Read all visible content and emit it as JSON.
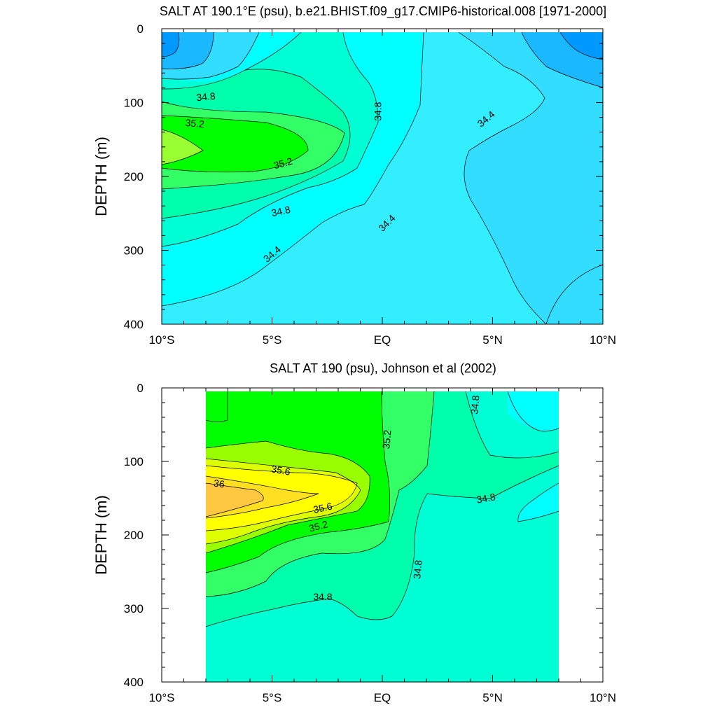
{
  "chart_data": [
    {
      "type": "contour",
      "title": "SALT AT 190.1°E (psu), b.e21.BHIST.f09_g17.CMIP6-historical.008 [1971-2000]",
      "ylabel": "DEPTH (m)",
      "xlabel": "",
      "xlim": [
        -10,
        10
      ],
      "ylim": [
        400,
        0
      ],
      "x_ticks": [
        -10,
        -5,
        0,
        5,
        10
      ],
      "x_tick_labels": [
        "10°S",
        "5°S",
        "EQ",
        "5°N",
        "10°N"
      ],
      "y_ticks": [
        0,
        100,
        200,
        300,
        400
      ],
      "y_tick_labels": [
        "0",
        "100",
        "200",
        "300",
        "400"
      ],
      "data_extent_x": [
        -10,
        10
      ],
      "data_extent_y": [
        0,
        400
      ],
      "background_color": "#33eeff",
      "fill_levels": [
        {
          "range": "<33.8",
          "color": "#0099ff"
        },
        {
          "range": "33.8-34.0",
          "color": "#1ab8ff"
        },
        {
          "range": "34.0-34.2",
          "color": "#33ddff"
        },
        {
          "range": "34.2-34.4",
          "color": "#33eeff"
        },
        {
          "range": "34.4-34.6",
          "color": "#00ffff"
        },
        {
          "range": "34.6-34.8",
          "color": "#00ffd5"
        },
        {
          "range": "34.8-35.0",
          "color": "#00ffaa"
        },
        {
          "range": "35.0-35.2",
          "color": "#33ff66"
        },
        {
          "range": "35.2-35.4",
          "color": "#00ff00"
        },
        {
          "range": "35.4-35.6",
          "color": "#99ff33"
        }
      ],
      "contour_labels": [
        {
          "text": "34.8",
          "x": -8.0,
          "y": 92,
          "angle": -5
        },
        {
          "text": "35.2",
          "x": -8.5,
          "y": 128,
          "angle": 5
        },
        {
          "text": "35.2",
          "x": -4.5,
          "y": 182,
          "angle": -15
        },
        {
          "text": "34.8",
          "x": -4.6,
          "y": 247,
          "angle": -12
        },
        {
          "text": "34.4",
          "x": -5.0,
          "y": 305,
          "angle": -40
        },
        {
          "text": "34.8",
          "x": -0.2,
          "y": 112,
          "angle": -90
        },
        {
          "text": "34.4",
          "x": 4.7,
          "y": 122,
          "angle": -40
        },
        {
          "text": "34.4",
          "x": 0.2,
          "y": 263,
          "angle": -45
        }
      ]
    },
    {
      "type": "contour",
      "title": "SALT AT 190 (psu), Johnson et al (2002)",
      "ylabel": "DEPTH (m)",
      "xlabel": "",
      "xlim": [
        -10,
        10
      ],
      "ylim": [
        400,
        0
      ],
      "x_ticks": [
        -10,
        -5,
        0,
        5,
        10
      ],
      "x_tick_labels": [
        "10°S",
        "5°S",
        "EQ",
        "5°N",
        "10°N"
      ],
      "y_ticks": [
        0,
        100,
        200,
        300,
        400
      ],
      "y_tick_labels": [
        "0",
        "100",
        "200",
        "300",
        "400"
      ],
      "data_extent_x": [
        -8,
        8
      ],
      "data_extent_y": [
        5,
        400
      ],
      "background_color": "#00ffd5",
      "fill_levels": [
        {
          "range": "34.4-34.6",
          "color": "#00ffff"
        },
        {
          "range": "34.6-34.8",
          "color": "#00ffd5"
        },
        {
          "range": "34.8-35.0",
          "color": "#00ffaa"
        },
        {
          "range": "35.0-35.2",
          "color": "#33ff66"
        },
        {
          "range": "35.2-35.4",
          "color": "#00ff00"
        },
        {
          "range": "35.4-35.6",
          "color": "#99ff00"
        },
        {
          "range": "35.6-35.8",
          "color": "#ddff00"
        },
        {
          "range": "35.8-36.0",
          "color": "#ffff00"
        },
        {
          "range": "36.0-36.2",
          "color": "#ffe020"
        },
        {
          "range": ">36.2",
          "color": "#ffc840"
        }
      ],
      "contour_labels": [
        {
          "text": "35.6",
          "x": -4.6,
          "y": 112,
          "angle": 10
        },
        {
          "text": "36",
          "x": -7.4,
          "y": 130,
          "angle": 8
        },
        {
          "text": "35.6",
          "x": -2.7,
          "y": 163,
          "angle": -12
        },
        {
          "text": "35.2",
          "x": -2.9,
          "y": 188,
          "angle": -15
        },
        {
          "text": "35.2",
          "x": 0.2,
          "y": 70,
          "angle": -85
        },
        {
          "text": "34.8",
          "x": 4.2,
          "y": 23,
          "angle": -85
        },
        {
          "text": "34.8",
          "x": 4.7,
          "y": 150,
          "angle": -10
        },
        {
          "text": "34.8",
          "x": 1.6,
          "y": 247,
          "angle": -85
        },
        {
          "text": "34.8",
          "x": -2.7,
          "y": 284,
          "angle": 0
        }
      ]
    }
  ]
}
